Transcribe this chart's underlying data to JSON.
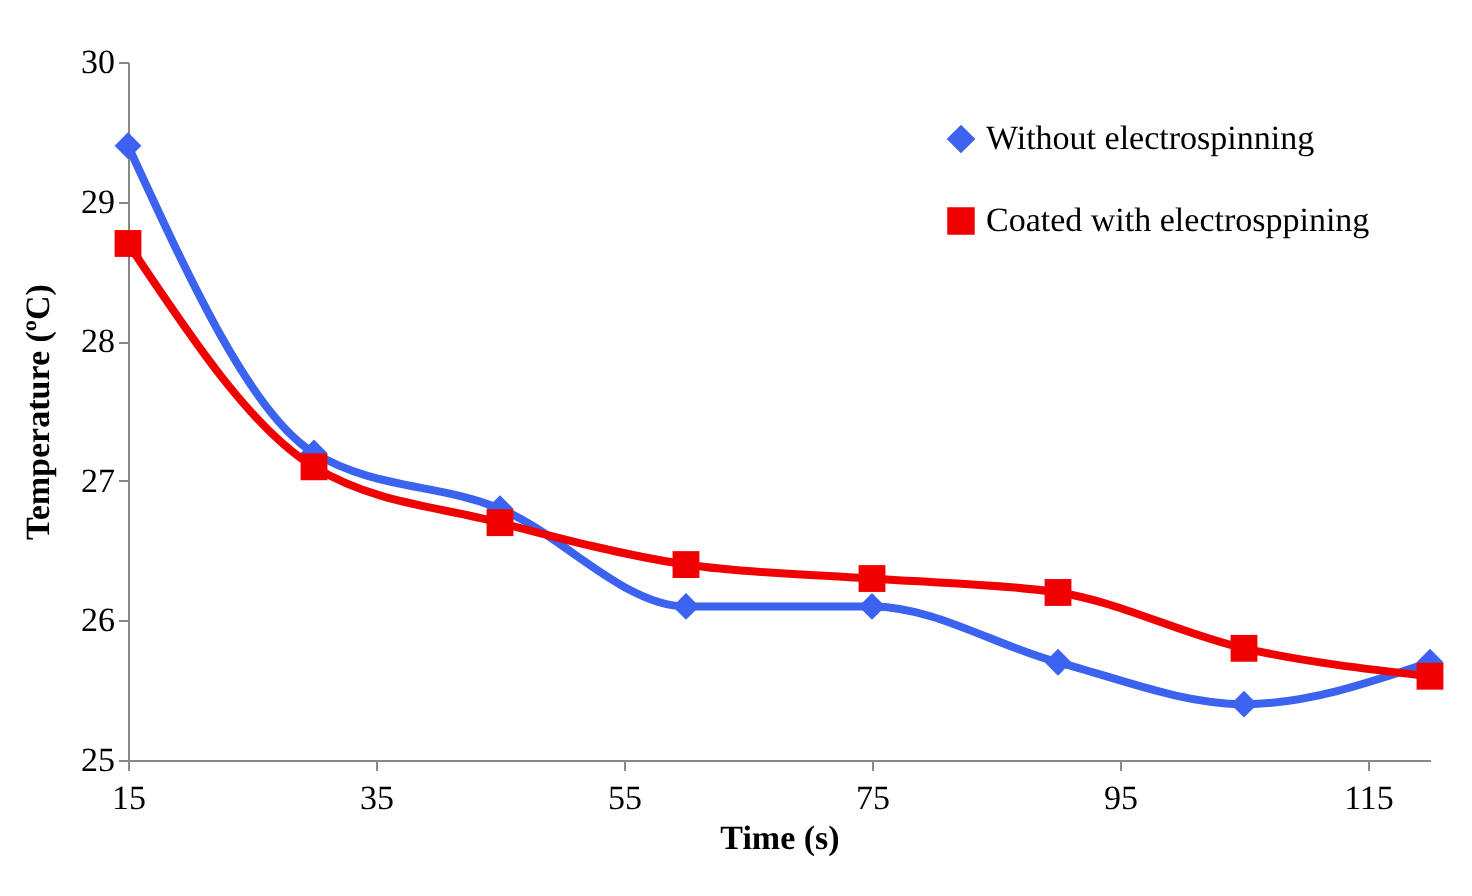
{
  "chart_data": {
    "type": "line",
    "xlabel": "Time (s)",
    "ylabel": "Temperature (ºC)",
    "x": [
      15,
      30,
      45,
      60,
      75,
      90,
      105,
      120
    ],
    "xlim": [
      15,
      120
    ],
    "xticks": [
      15,
      35,
      55,
      75,
      95,
      115
    ],
    "ylim": [
      25,
      30
    ],
    "yticks": [
      25,
      26,
      27,
      28,
      29,
      30
    ],
    "legend": "top right",
    "series": [
      {
        "name": "Without electrospinning",
        "color": "#3c62f0",
        "marker": "diamond",
        "values": [
          29.4,
          27.2,
          26.8,
          26.1,
          26.1,
          25.7,
          25.4,
          25.7
        ]
      },
      {
        "name": "Coated with electrosppining",
        "color": "#f00000",
        "marker": "square",
        "values": [
          28.7,
          27.1,
          26.7,
          26.4,
          26.3,
          26.2,
          25.8,
          25.6
        ]
      }
    ]
  }
}
